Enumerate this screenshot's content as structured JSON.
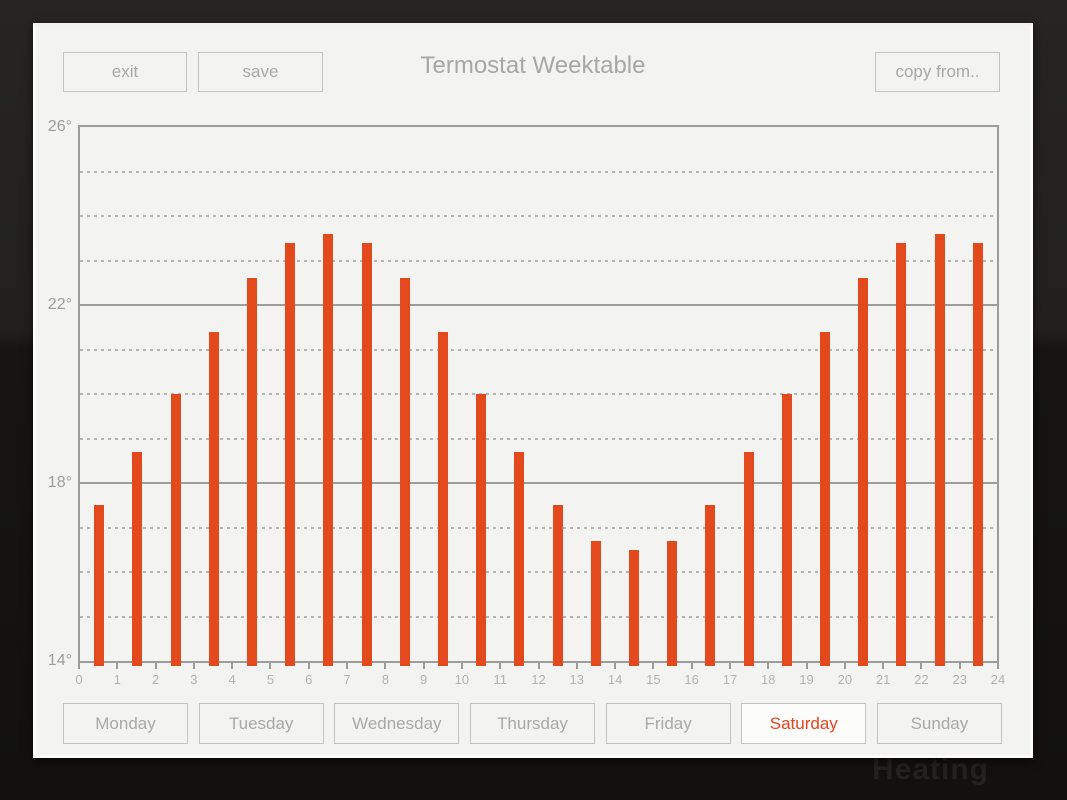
{
  "header": {
    "title": "Termostat Weektable"
  },
  "toolbar": {
    "exit_label": "exit",
    "save_label": "save",
    "copy_from_label": "copy from.."
  },
  "day_tabs": {
    "selected": "Saturday",
    "days": [
      {
        "label": "Monday",
        "selected": false
      },
      {
        "label": "Tuesday",
        "selected": false
      },
      {
        "label": "Wednesday",
        "selected": false
      },
      {
        "label": "Thursday",
        "selected": false
      },
      {
        "label": "Friday",
        "selected": false
      },
      {
        "label": "Saturday",
        "selected": true
      },
      {
        "label": "Sunday",
        "selected": false
      }
    ]
  },
  "background": {
    "watermark": "Heating"
  },
  "colors": {
    "bar": "#e2491d",
    "selected_day_text": "#e8431c",
    "axis_line": "#9c9c9a",
    "dashed_line": "#b4b4b2",
    "panel_bg": "#f3f3f1"
  },
  "chart_data": {
    "type": "bar",
    "title": "Termostat Weektable",
    "x_unit": "hour of day",
    "y_unit": "degrees",
    "x": [
      0,
      1,
      2,
      3,
      4,
      5,
      6,
      7,
      8,
      9,
      10,
      11,
      12,
      13,
      14,
      15,
      16,
      17,
      18,
      19,
      20,
      21,
      22,
      23
    ],
    "values": [
      17.5,
      18.7,
      20.0,
      21.4,
      22.6,
      23.4,
      23.6,
      23.4,
      22.6,
      21.4,
      20.0,
      18.7,
      17.5,
      16.7,
      16.5,
      16.7,
      17.5,
      18.7,
      20.0,
      21.4,
      22.6,
      23.4,
      23.6,
      23.4
    ],
    "ylim": [
      14,
      26
    ],
    "yticks": [
      {
        "value": 26,
        "label": "26°"
      },
      {
        "value": 22,
        "label": "22°"
      },
      {
        "value": 18,
        "label": "18°"
      },
      {
        "value": 14,
        "label": "14°"
      }
    ],
    "ygrid_solid": [
      18,
      22
    ],
    "ygrid_dashed": [
      15,
      16,
      17,
      19,
      20,
      21,
      23,
      24,
      25
    ],
    "xtick_labels": [
      "0",
      "1",
      "2",
      "3",
      "4",
      "5",
      "6",
      "7",
      "8",
      "9",
      "10",
      "11",
      "12",
      "13",
      "14",
      "15",
      "16",
      "17",
      "18",
      "19",
      "20",
      "21",
      "22",
      "23",
      "24"
    ],
    "grid": "solid lines every 4 degrees, dashed lines every 1 degree",
    "legend_position": "none",
    "bar_color": "#e2491d"
  }
}
